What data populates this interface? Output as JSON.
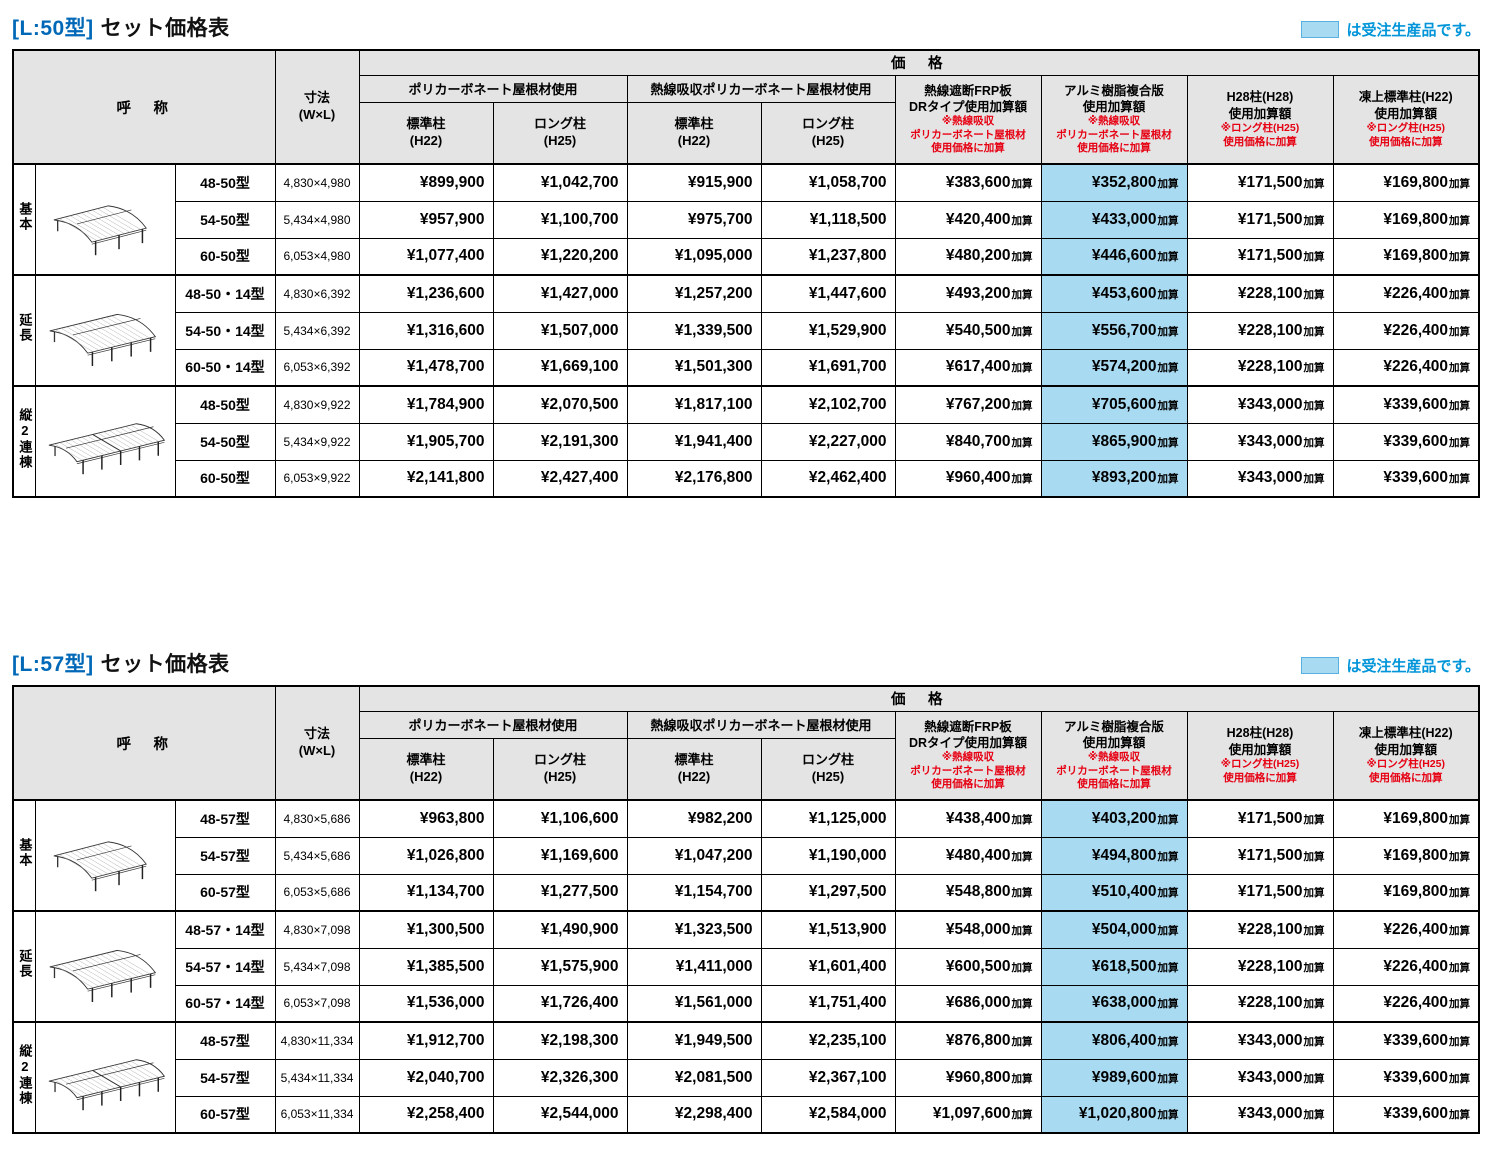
{
  "colors": {
    "highlight": "#a8daf2",
    "header_gray": "#e4e4e4",
    "red_note": "#e60012",
    "title_blue": "#0068b7",
    "legend_blue": "#0095d9"
  },
  "legend": {
    "text": "は受注生産品です。"
  },
  "table_header": {
    "name_label": "呼　称",
    "size_label_line1": "寸法",
    "size_label_line2": "(W×L)",
    "price_label": "価　格",
    "roof_groups": [
      {
        "label": "ポリカーボネート屋根材使用",
        "subs": [
          {
            "l1": "標準柱",
            "l2": "(H22)"
          },
          {
            "l1": "ロング柱",
            "l2": "(H25)"
          }
        ]
      },
      {
        "label": "熱線吸収ポリカーボネート屋根材使用",
        "subs": [
          {
            "l1": "標準柱",
            "l2": "(H22)"
          },
          {
            "l1": "ロング柱",
            "l2": "(H25)"
          }
        ]
      }
    ],
    "add_columns": [
      {
        "lines": [
          "熱線遮断FRP板",
          "DRタイプ使用加算額"
        ],
        "note": [
          "※熱線吸収",
          "ポリカーボネート屋根材",
          "使用価格に加算"
        ],
        "highlight": false
      },
      {
        "lines": [
          "アルミ樹脂複合版",
          "使用加算額"
        ],
        "note": [
          "※熱線吸収",
          "ポリカーボネート屋根材",
          "使用価格に加算"
        ],
        "highlight": true
      },
      {
        "lines": [
          "H28柱(H28)",
          "使用加算額"
        ],
        "note": [
          "※ロング柱(H25)",
          "使用価格に加算"
        ],
        "highlight": false
      },
      {
        "lines": [
          "凍上標準柱(H22)",
          "使用加算額"
        ],
        "note": [
          "※ロング柱(H25)",
          "使用価格に加算"
        ],
        "highlight": false
      }
    ]
  },
  "tables": [
    {
      "title_tag": "[L:50型]",
      "title_rest": "セット価格表",
      "groups": [
        {
          "label": "基本",
          "illustration": "single",
          "rows": [
            {
              "model": "48-50型",
              "size": "4,830×4,980",
              "prices": [
                "¥899,900",
                "¥1,042,700",
                "¥915,900",
                "¥1,058,700",
                "¥383,600加算",
                "¥352,800加算",
                "¥171,500加算",
                "¥169,800加算"
              ]
            },
            {
              "model": "54-50型",
              "size": "5,434×4,980",
              "prices": [
                "¥957,900",
                "¥1,100,700",
                "¥975,700",
                "¥1,118,500",
                "¥420,400加算",
                "¥433,000加算",
                "¥171,500加算",
                "¥169,800加算"
              ]
            },
            {
              "model": "60-50型",
              "size": "6,053×4,980",
              "prices": [
                "¥1,077,400",
                "¥1,220,200",
                "¥1,095,000",
                "¥1,237,800",
                "¥480,200加算",
                "¥446,600加算",
                "¥171,500加算",
                "¥169,800加算"
              ]
            }
          ]
        },
        {
          "label": "延長",
          "illustration": "extended",
          "rows": [
            {
              "model": "48-50・14型",
              "size": "4,830×6,392",
              "prices": [
                "¥1,236,600",
                "¥1,427,000",
                "¥1,257,200",
                "¥1,447,600",
                "¥493,200加算",
                "¥453,600加算",
                "¥228,100加算",
                "¥226,400加算"
              ]
            },
            {
              "model": "54-50・14型",
              "size": "5,434×6,392",
              "prices": [
                "¥1,316,600",
                "¥1,507,000",
                "¥1,339,500",
                "¥1,529,900",
                "¥540,500加算",
                "¥556,700加算",
                "¥228,100加算",
                "¥226,400加算"
              ]
            },
            {
              "model": "60-50・14型",
              "size": "6,053×6,392",
              "prices": [
                "¥1,478,700",
                "¥1,669,100",
                "¥1,501,300",
                "¥1,691,700",
                "¥617,400加算",
                "¥574,200加算",
                "¥228,100加算",
                "¥226,400加算"
              ]
            }
          ]
        },
        {
          "label": "縦2連棟",
          "illustration": "double",
          "rows": [
            {
              "model": "48-50型",
              "size": "4,830×9,922",
              "prices": [
                "¥1,784,900",
                "¥2,070,500",
                "¥1,817,100",
                "¥2,102,700",
                "¥767,200加算",
                "¥705,600加算",
                "¥343,000加算",
                "¥339,600加算"
              ]
            },
            {
              "model": "54-50型",
              "size": "5,434×9,922",
              "prices": [
                "¥1,905,700",
                "¥2,191,300",
                "¥1,941,400",
                "¥2,227,000",
                "¥840,700加算",
                "¥865,900加算",
                "¥343,000加算",
                "¥339,600加算"
              ]
            },
            {
              "model": "60-50型",
              "size": "6,053×9,922",
              "prices": [
                "¥2,141,800",
                "¥2,427,400",
                "¥2,176,800",
                "¥2,462,400",
                "¥960,400加算",
                "¥893,200加算",
                "¥343,000加算",
                "¥339,600加算"
              ]
            }
          ]
        }
      ]
    },
    {
      "title_tag": "[L:57型]",
      "title_rest": "セット価格表",
      "groups": [
        {
          "label": "基本",
          "illustration": "single",
          "rows": [
            {
              "model": "48-57型",
              "size": "4,830×5,686",
              "prices": [
                "¥963,800",
                "¥1,106,600",
                "¥982,200",
                "¥1,125,000",
                "¥438,400加算",
                "¥403,200加算",
                "¥171,500加算",
                "¥169,800加算"
              ]
            },
            {
              "model": "54-57型",
              "size": "5,434×5,686",
              "prices": [
                "¥1,026,800",
                "¥1,169,600",
                "¥1,047,200",
                "¥1,190,000",
                "¥480,400加算",
                "¥494,800加算",
                "¥171,500加算",
                "¥169,800加算"
              ]
            },
            {
              "model": "60-57型",
              "size": "6,053×5,686",
              "prices": [
                "¥1,134,700",
                "¥1,277,500",
                "¥1,154,700",
                "¥1,297,500",
                "¥548,800加算",
                "¥510,400加算",
                "¥171,500加算",
                "¥169,800加算"
              ]
            }
          ]
        },
        {
          "label": "延長",
          "illustration": "extended",
          "rows": [
            {
              "model": "48-57・14型",
              "size": "4,830×7,098",
              "prices": [
                "¥1,300,500",
                "¥1,490,900",
                "¥1,323,500",
                "¥1,513,900",
                "¥548,000加算",
                "¥504,000加算",
                "¥228,100加算",
                "¥226,400加算"
              ]
            },
            {
              "model": "54-57・14型",
              "size": "5,434×7,098",
              "prices": [
                "¥1,385,500",
                "¥1,575,900",
                "¥1,411,000",
                "¥1,601,400",
                "¥600,500加算",
                "¥618,500加算",
                "¥228,100加算",
                "¥226,400加算"
              ]
            },
            {
              "model": "60-57・14型",
              "size": "6,053×7,098",
              "prices": [
                "¥1,536,000",
                "¥1,726,400",
                "¥1,561,000",
                "¥1,751,400",
                "¥686,000加算",
                "¥638,000加算",
                "¥228,100加算",
                "¥226,400加算"
              ]
            }
          ]
        },
        {
          "label": "縦2連棟",
          "illustration": "double",
          "rows": [
            {
              "model": "48-57型",
              "size": "4,830×11,334",
              "prices": [
                "¥1,912,700",
                "¥2,198,300",
                "¥1,949,500",
                "¥2,235,100",
                "¥876,800加算",
                "¥806,400加算",
                "¥343,000加算",
                "¥339,600加算"
              ]
            },
            {
              "model": "54-57型",
              "size": "5,434×11,334",
              "prices": [
                "¥2,040,700",
                "¥2,326,300",
                "¥2,081,500",
                "¥2,367,100",
                "¥960,800加算",
                "¥989,600加算",
                "¥343,000加算",
                "¥339,600加算"
              ]
            },
            {
              "model": "60-57型",
              "size": "6,053×11,334",
              "prices": [
                "¥2,258,400",
                "¥2,544,000",
                "¥2,298,400",
                "¥2,584,000",
                "¥1,097,600加算",
                "¥1,020,800加算",
                "¥343,000加算",
                "¥339,600加算"
              ]
            }
          ]
        }
      ]
    }
  ]
}
